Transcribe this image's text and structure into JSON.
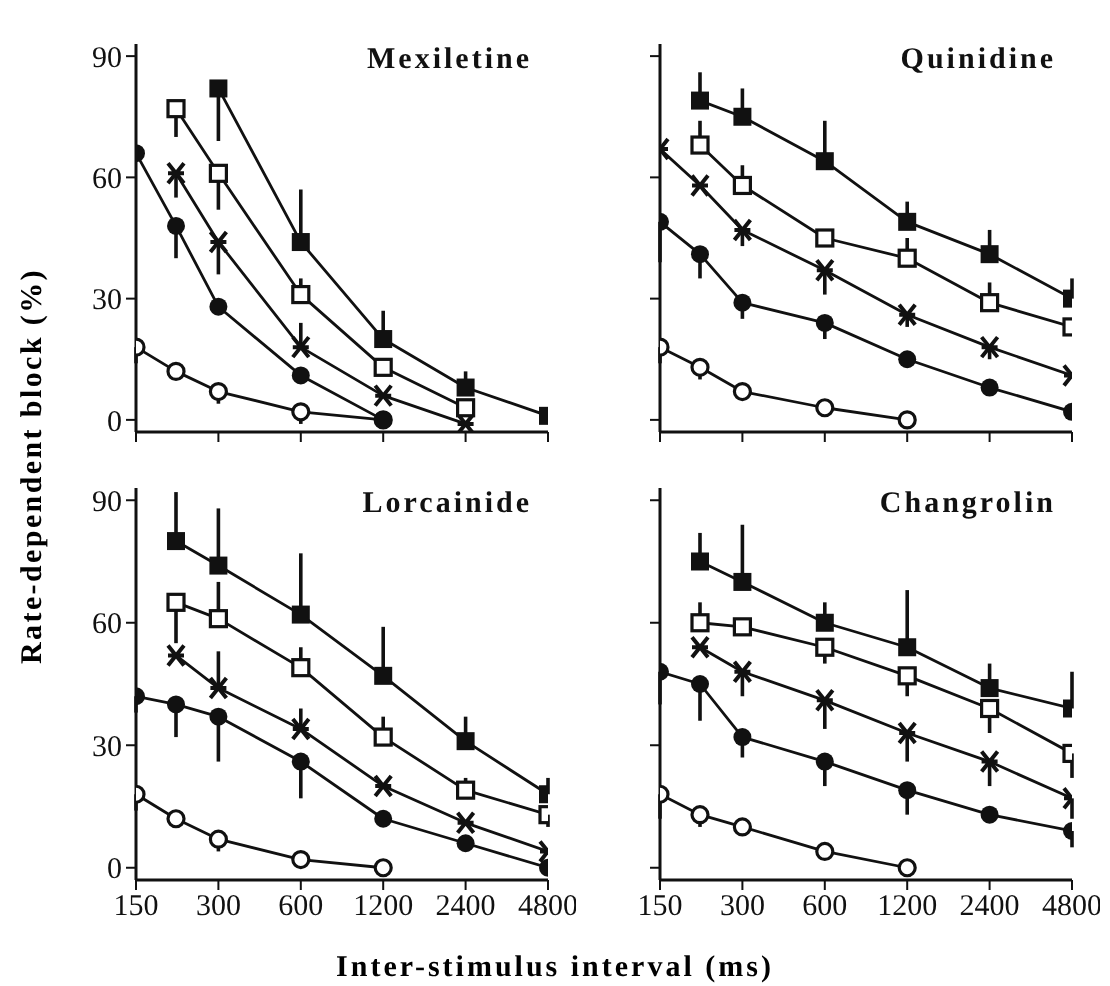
{
  "chart_data": [
    {
      "type": "line",
      "title": "Mexiletine",
      "ylabel": "Rate-dependent block (%)",
      "x": [
        150,
        210,
        300,
        600,
        1200,
        2400,
        4800
      ],
      "log": "x",
      "xlim": [
        150,
        4800
      ],
      "xticks": [
        150,
        300,
        600,
        1200,
        2400,
        4800
      ],
      "ylim": [
        -3,
        93
      ],
      "yticks": [
        0,
        30,
        60,
        90
      ],
      "tick_labels": "y",
      "series": [
        {
          "color": "#111111",
          "marker": "circle-open",
          "values": [
            18,
            12,
            7,
            2,
            0,
            null,
            null
          ],
          "errors": [
            [
              14,
              18
            ],
            null,
            [
              4,
              7
            ],
            [
              -1,
              2
            ],
            null,
            null,
            null
          ]
        },
        {
          "color": "#111111",
          "marker": "circle",
          "values": [
            66,
            48,
            28,
            11,
            0,
            null,
            null
          ],
          "errors": [
            null,
            [
              40,
              48
            ],
            null,
            null,
            null,
            null,
            null
          ]
        },
        {
          "color": "#111111",
          "marker": "cross",
          "values": [
            null,
            61,
            44,
            18,
            6,
            -1,
            null
          ],
          "errors": [
            null,
            [
              55,
              61
            ],
            [
              36,
              44
            ],
            [
              18,
              24
            ],
            null,
            null,
            null
          ]
        },
        {
          "color": "#111111",
          "marker": "square-open",
          "values": [
            null,
            77,
            61,
            31,
            13,
            3,
            null
          ],
          "errors": [
            null,
            [
              70,
              77
            ],
            [
              52,
              61
            ],
            [
              31,
              35
            ],
            null,
            null,
            null
          ]
        },
        {
          "color": "#111111",
          "marker": "square",
          "values": [
            null,
            null,
            82,
            44,
            20,
            8,
            1
          ],
          "errors": [
            null,
            null,
            [
              69,
              82
            ],
            [
              44,
              57
            ],
            [
              20,
              27
            ],
            [
              8,
              12
            ],
            null
          ]
        }
      ]
    },
    {
      "type": "line",
      "title": "Quinidine",
      "x": [
        150,
        210,
        300,
        600,
        1200,
        2400,
        4800
      ],
      "log": "x",
      "xlim": [
        150,
        4800
      ],
      "xticks": [
        150,
        300,
        600,
        1200,
        2400,
        4800
      ],
      "ylim": [
        -3,
        93
      ],
      "yticks": [
        0,
        30,
        60,
        90
      ],
      "tick_labels": false,
      "series": [
        {
          "color": "#111111",
          "marker": "circle-open",
          "values": [
            18,
            13,
            7,
            3,
            0,
            null,
            null
          ],
          "errors": [
            [
              14,
              18
            ],
            [
              10,
              13
            ],
            [
              5,
              7
            ],
            null,
            null,
            null,
            null
          ]
        },
        {
          "color": "#111111",
          "marker": "circle",
          "values": [
            49,
            41,
            29,
            24,
            15,
            8,
            2
          ],
          "errors": [
            [
              39,
              49
            ],
            [
              35,
              41
            ],
            [
              25,
              29
            ],
            [
              20,
              24
            ],
            [
              13,
              15
            ],
            [
              6,
              8
            ],
            null
          ]
        },
        {
          "color": "#111111",
          "marker": "cross",
          "values": [
            67,
            58,
            47,
            37,
            26,
            18,
            11
          ],
          "errors": [
            null,
            null,
            [
              43,
              47
            ],
            [
              31,
              37
            ],
            [
              23,
              26
            ],
            [
              15,
              18
            ],
            null
          ]
        },
        {
          "color": "#111111",
          "marker": "square-open",
          "values": [
            null,
            68,
            58,
            45,
            40,
            29,
            23
          ],
          "errors": [
            null,
            [
              68,
              74
            ],
            [
              58,
              63
            ],
            null,
            [
              40,
              45
            ],
            [
              29,
              34
            ],
            null
          ]
        },
        {
          "color": "#111111",
          "marker": "square",
          "values": [
            null,
            79,
            75,
            64,
            49,
            41,
            30
          ],
          "errors": [
            null,
            [
              79,
              86
            ],
            [
              75,
              82
            ],
            [
              64,
              74
            ],
            [
              49,
              54
            ],
            [
              41,
              47
            ],
            [
              30,
              35
            ]
          ]
        }
      ]
    },
    {
      "type": "line",
      "title": "Lorcainide",
      "xlabel": "Inter-stimulus interval (ms)",
      "x": [
        150,
        210,
        300,
        600,
        1200,
        2400,
        4800
      ],
      "log": "x",
      "xlim": [
        150,
        4800
      ],
      "xticks": [
        150,
        300,
        600,
        1200,
        2400,
        4800
      ],
      "ylim": [
        -3,
        93
      ],
      "yticks": [
        0,
        30,
        60,
        90
      ],
      "series": [
        {
          "color": "#111111",
          "marker": "circle-open",
          "values": [
            18,
            12,
            7,
            2,
            0,
            null,
            null
          ],
          "errors": [
            [
              14,
              18
            ],
            null,
            [
              4,
              7
            ],
            null,
            null,
            null,
            null
          ]
        },
        {
          "color": "#111111",
          "marker": "circle",
          "values": [
            42,
            40,
            37,
            26,
            12,
            6,
            0
          ],
          "errors": [
            [
              38,
              42
            ],
            [
              32,
              40
            ],
            [
              26,
              37
            ],
            [
              17,
              26
            ],
            null,
            null,
            null
          ]
        },
        {
          "color": "#111111",
          "marker": "cross",
          "values": [
            null,
            52,
            44,
            34,
            20,
            11,
            4
          ],
          "errors": [
            null,
            null,
            [
              44,
              53
            ],
            [
              34,
              39
            ],
            null,
            null,
            null
          ]
        },
        {
          "color": "#111111",
          "marker": "square-open",
          "values": [
            null,
            65,
            61,
            49,
            32,
            19,
            13
          ],
          "errors": [
            null,
            [
              55,
              65
            ],
            [
              61,
              70
            ],
            [
              49,
              54
            ],
            [
              32,
              37
            ],
            [
              19,
              22
            ],
            [
              10,
              13
            ]
          ]
        },
        {
          "color": "#111111",
          "marker": "square",
          "values": [
            null,
            80,
            74,
            62,
            47,
            31,
            18
          ],
          "errors": [
            null,
            [
              80,
              92
            ],
            [
              74,
              88
            ],
            [
              62,
              77
            ],
            [
              47,
              59
            ],
            [
              31,
              37
            ],
            [
              18,
              22
            ]
          ]
        }
      ]
    },
    {
      "type": "line",
      "title": "Changrolin",
      "x": [
        150,
        210,
        300,
        600,
        1200,
        2400,
        4800
      ],
      "log": "x",
      "xlim": [
        150,
        4800
      ],
      "xticks": [
        150,
        300,
        600,
        1200,
        2400,
        4800
      ],
      "ylim": [
        -3,
        93
      ],
      "yticks": [
        0,
        30,
        60,
        90
      ],
      "tick_labels": "x",
      "series": [
        {
          "color": "#111111",
          "marker": "circle-open",
          "values": [
            18,
            13,
            10,
            4,
            0,
            null,
            null
          ],
          "errors": [
            [
              12,
              18
            ],
            [
              10,
              13
            ],
            [
              8,
              10
            ],
            [
              2,
              4
            ],
            null,
            null,
            null
          ]
        },
        {
          "color": "#111111",
          "marker": "circle",
          "values": [
            48,
            45,
            32,
            26,
            19,
            13,
            9
          ],
          "errors": [
            [
              40,
              48
            ],
            [
              36,
              45
            ],
            [
              27,
              32
            ],
            [
              20,
              26
            ],
            [
              13,
              19
            ],
            null,
            [
              5,
              9
            ]
          ]
        },
        {
          "color": "#111111",
          "marker": "cross",
          "values": [
            null,
            54,
            48,
            41,
            33,
            26,
            17
          ],
          "errors": [
            null,
            null,
            [
              42,
              48
            ],
            [
              34,
              41
            ],
            [
              26,
              33
            ],
            [
              20,
              26
            ],
            [
              12,
              17
            ]
          ]
        },
        {
          "color": "#111111",
          "marker": "square-open",
          "values": [
            null,
            60,
            59,
            54,
            47,
            39,
            28
          ],
          "errors": [
            null,
            [
              60,
              65
            ],
            null,
            [
              50,
              54
            ],
            [
              42,
              47
            ],
            [
              33,
              39
            ],
            [
              22,
              28
            ]
          ]
        },
        {
          "color": "#111111",
          "marker": "square",
          "values": [
            null,
            75,
            70,
            60,
            54,
            44,
            39
          ],
          "errors": [
            null,
            [
              75,
              82
            ],
            [
              70,
              84
            ],
            [
              60,
              65
            ],
            [
              54,
              68
            ],
            [
              44,
              50
            ],
            [
              39,
              48
            ]
          ]
        }
      ]
    }
  ]
}
